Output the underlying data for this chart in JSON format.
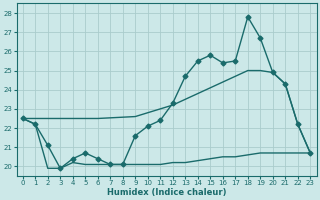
{
  "title": "",
  "xlabel": "Humidex (Indice chaleur)",
  "bg_color": "#cce8e8",
  "grid_color": "#aacccc",
  "line_color": "#1a6b6b",
  "xlim": [
    -0.5,
    23.5
  ],
  "ylim": [
    19.5,
    28.5
  ],
  "xticks": [
    0,
    1,
    2,
    3,
    4,
    5,
    6,
    7,
    8,
    9,
    10,
    11,
    12,
    13,
    14,
    15,
    16,
    17,
    18,
    19,
    20,
    21,
    22,
    23
  ],
  "yticks": [
    20,
    21,
    22,
    23,
    24,
    25,
    26,
    27,
    28
  ],
  "series1_x": [
    0,
    1,
    2,
    3,
    4,
    5,
    6,
    7,
    8,
    9,
    10,
    11,
    12,
    13,
    14,
    15,
    16,
    17,
    18,
    19,
    20,
    21,
    22,
    23
  ],
  "series1_y": [
    22.5,
    22.2,
    21.1,
    19.9,
    20.4,
    20.7,
    20.4,
    20.1,
    20.1,
    21.6,
    22.1,
    22.4,
    23.3,
    24.7,
    25.5,
    25.8,
    25.4,
    25.5,
    27.8,
    26.7,
    24.9,
    24.3,
    22.2,
    20.7
  ],
  "series2_x": [
    0,
    5,
    6,
    9,
    10,
    11,
    12,
    13,
    14,
    15,
    16,
    17,
    18,
    19,
    20,
    21,
    22,
    23
  ],
  "series2_y": [
    22.5,
    22.5,
    22.5,
    22.6,
    22.8,
    23.0,
    23.2,
    23.5,
    23.8,
    24.1,
    24.4,
    24.7,
    25.0,
    25.0,
    24.9,
    24.3,
    22.2,
    20.7
  ],
  "series3_x": [
    0,
    1,
    2,
    3,
    4,
    5,
    6,
    7,
    8,
    9,
    10,
    11,
    12,
    13,
    14,
    15,
    16,
    17,
    18,
    19,
    20,
    21,
    22,
    23
  ],
  "series3_y": [
    22.5,
    22.2,
    19.9,
    19.9,
    20.2,
    20.1,
    20.1,
    20.1,
    20.1,
    20.1,
    20.1,
    20.1,
    20.2,
    20.2,
    20.3,
    20.4,
    20.5,
    20.5,
    20.6,
    20.7,
    20.7,
    20.7,
    20.7,
    20.7
  ],
  "marker_size": 2.5,
  "line_width": 1.0
}
